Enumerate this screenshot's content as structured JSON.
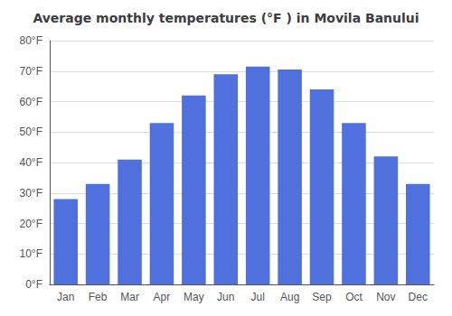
{
  "chart_data": {
    "type": "bar",
    "title": "Average monthly temperatures (°F ) in Movila Banului",
    "categories": [
      "Jan",
      "Feb",
      "Mar",
      "Apr",
      "May",
      "Jun",
      "Jul",
      "Aug",
      "Sep",
      "Oct",
      "Nov",
      "Dec"
    ],
    "values": [
      28,
      33,
      41,
      53,
      62,
      69,
      71.5,
      70.5,
      64,
      53,
      42,
      33
    ],
    "ylim": [
      0,
      80
    ],
    "yticks": [
      {
        "value": 0,
        "label": "0°F"
      },
      {
        "value": 10,
        "label": "10°F"
      },
      {
        "value": 20,
        "label": "20°F"
      },
      {
        "value": 30,
        "label": "30°F"
      },
      {
        "value": 40,
        "label": "40°F"
      },
      {
        "value": 50,
        "label": "50°F"
      },
      {
        "value": 60,
        "label": "60°F"
      },
      {
        "value": 70,
        "label": "70°F"
      },
      {
        "value": 80,
        "label": "80°F"
      }
    ],
    "grid": true
  }
}
